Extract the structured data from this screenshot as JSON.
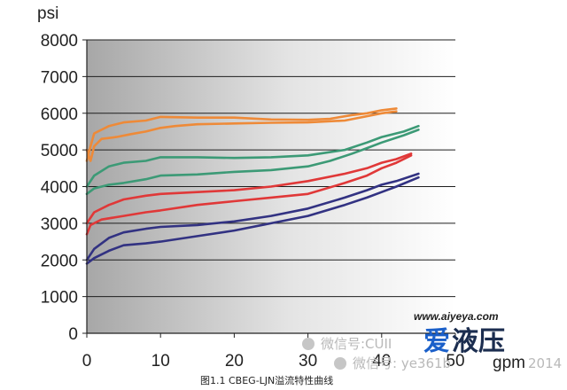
{
  "chart_data": {
    "type": "line",
    "title": "",
    "ylabel": "psi",
    "xlabel": "gpm",
    "caption": "图1.1 CBEG-LJN溢流特性曲线",
    "xlim": [
      0,
      50
    ],
    "ylim": [
      0,
      8000
    ],
    "xticks": [
      0,
      10,
      20,
      30,
      40,
      50
    ],
    "yticks": [
      0,
      1000,
      2000,
      3000,
      4000,
      5000,
      6000,
      7000,
      8000
    ],
    "grid": true,
    "legend": "none",
    "background": "gray-gradient",
    "series": [
      {
        "color": "#ee8a38",
        "values": [
          [
            0,
            5000
          ],
          [
            0.5,
            4700
          ],
          [
            1,
            5100
          ],
          [
            2,
            5300
          ],
          [
            4,
            5350
          ],
          [
            6,
            5430
          ],
          [
            8,
            5500
          ],
          [
            10,
            5600
          ],
          [
            12,
            5650
          ],
          [
            15,
            5700
          ],
          [
            20,
            5720
          ],
          [
            25,
            5740
          ],
          [
            30,
            5750
          ],
          [
            35,
            5800
          ],
          [
            38,
            5920
          ],
          [
            40,
            6000
          ],
          [
            42,
            6050
          ]
        ]
      },
      {
        "color": "#ee8a38",
        "values": [
          [
            0,
            4700
          ],
          [
            0.5,
            5100
          ],
          [
            1,
            5450
          ],
          [
            3,
            5650
          ],
          [
            5,
            5750
          ],
          [
            8,
            5800
          ],
          [
            10,
            5900
          ],
          [
            15,
            5880
          ],
          [
            20,
            5880
          ],
          [
            25,
            5830
          ],
          [
            30,
            5820
          ],
          [
            33,
            5850
          ],
          [
            36,
            5950
          ],
          [
            38,
            6000
          ],
          [
            40,
            6080
          ],
          [
            42,
            6130
          ]
        ]
      },
      {
        "color": "#3c9a76",
        "values": [
          [
            0,
            3800
          ],
          [
            1,
            3950
          ],
          [
            3,
            4050
          ],
          [
            5,
            4100
          ],
          [
            8,
            4200
          ],
          [
            10,
            4300
          ],
          [
            15,
            4330
          ],
          [
            20,
            4400
          ],
          [
            25,
            4450
          ],
          [
            30,
            4550
          ],
          [
            33,
            4700
          ],
          [
            36,
            4900
          ],
          [
            38,
            5050
          ],
          [
            40,
            5200
          ],
          [
            43,
            5400
          ],
          [
            45,
            5550
          ]
        ]
      },
      {
        "color": "#3c9a76",
        "values": [
          [
            0,
            4000
          ],
          [
            1,
            4300
          ],
          [
            3,
            4550
          ],
          [
            5,
            4650
          ],
          [
            8,
            4700
          ],
          [
            10,
            4800
          ],
          [
            15,
            4800
          ],
          [
            20,
            4780
          ],
          [
            25,
            4800
          ],
          [
            30,
            4850
          ],
          [
            35,
            5000
          ],
          [
            38,
            5200
          ],
          [
            40,
            5350
          ],
          [
            43,
            5500
          ],
          [
            45,
            5650
          ]
        ]
      },
      {
        "color": "#e03838",
        "values": [
          [
            0,
            2700
          ],
          [
            0.5,
            2950
          ],
          [
            2,
            3100
          ],
          [
            5,
            3200
          ],
          [
            8,
            3300
          ],
          [
            10,
            3350
          ],
          [
            15,
            3500
          ],
          [
            20,
            3600
          ],
          [
            25,
            3700
          ],
          [
            30,
            3800
          ],
          [
            35,
            4100
          ],
          [
            38,
            4300
          ],
          [
            40,
            4500
          ],
          [
            42,
            4650
          ],
          [
            44,
            4850
          ]
        ]
      },
      {
        "color": "#e03838",
        "values": [
          [
            0,
            3000
          ],
          [
            1,
            3300
          ],
          [
            3,
            3500
          ],
          [
            5,
            3650
          ],
          [
            8,
            3750
          ],
          [
            10,
            3800
          ],
          [
            15,
            3850
          ],
          [
            20,
            3900
          ],
          [
            25,
            4000
          ],
          [
            30,
            4150
          ],
          [
            35,
            4350
          ],
          [
            38,
            4500
          ],
          [
            40,
            4650
          ],
          [
            42,
            4750
          ],
          [
            44,
            4900
          ]
        ]
      },
      {
        "color": "#323282",
        "values": [
          [
            0,
            1900
          ],
          [
            1,
            2050
          ],
          [
            3,
            2250
          ],
          [
            5,
            2400
          ],
          [
            8,
            2450
          ],
          [
            10,
            2500
          ],
          [
            15,
            2650
          ],
          [
            20,
            2800
          ],
          [
            25,
            3000
          ],
          [
            30,
            3200
          ],
          [
            35,
            3500
          ],
          [
            38,
            3700
          ],
          [
            40,
            3850
          ],
          [
            42,
            4000
          ],
          [
            45,
            4250
          ]
        ]
      },
      {
        "color": "#323282",
        "values": [
          [
            0,
            2000
          ],
          [
            1,
            2300
          ],
          [
            3,
            2600
          ],
          [
            5,
            2750
          ],
          [
            8,
            2850
          ],
          [
            10,
            2900
          ],
          [
            15,
            2950
          ],
          [
            20,
            3050
          ],
          [
            25,
            3200
          ],
          [
            30,
            3400
          ],
          [
            35,
            3700
          ],
          [
            38,
            3900
          ],
          [
            40,
            4050
          ],
          [
            42,
            4150
          ],
          [
            45,
            4350
          ]
        ]
      }
    ]
  },
  "watermark": {
    "line1": "微信号:CUII",
    "line2": "微信号: ye361b",
    "line2_tail": "2014",
    "url": "www.aiyeya.com",
    "logo": "爱液压",
    "logo_color_1": "#1a5fc9",
    "logo_color_2": "#1b2d4f"
  }
}
